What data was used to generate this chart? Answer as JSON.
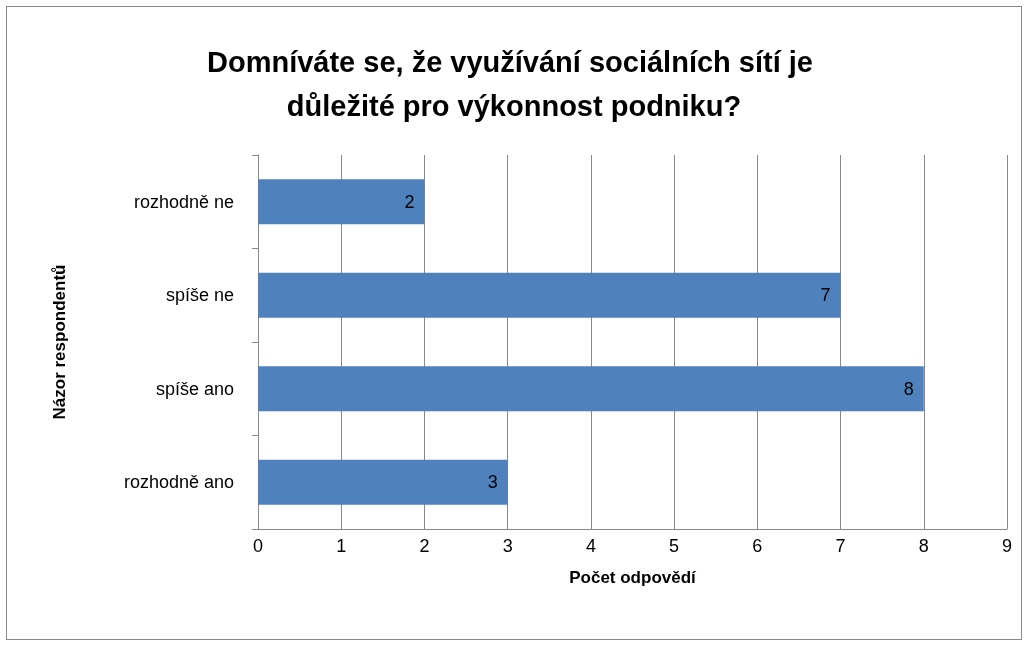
{
  "chart_data": {
    "type": "bar",
    "orientation": "horizontal",
    "title": "Domníváte se, že využívání sociálních sítí je důležité pro výkonnost podniku?",
    "xlabel": "Počet odpovědí",
    "ylabel": "Názor respondentů",
    "categories": [
      "rozhodně ne",
      "spíše ne",
      "spíše ano",
      "rozhodně ano"
    ],
    "values": [
      2,
      7,
      8,
      3
    ],
    "color": "#4f81bd",
    "xlim": [
      0,
      9
    ],
    "xticks": [
      0,
      1,
      2,
      3,
      4,
      5,
      6,
      7,
      8,
      9
    ],
    "grid": "x",
    "data_labels": true
  }
}
